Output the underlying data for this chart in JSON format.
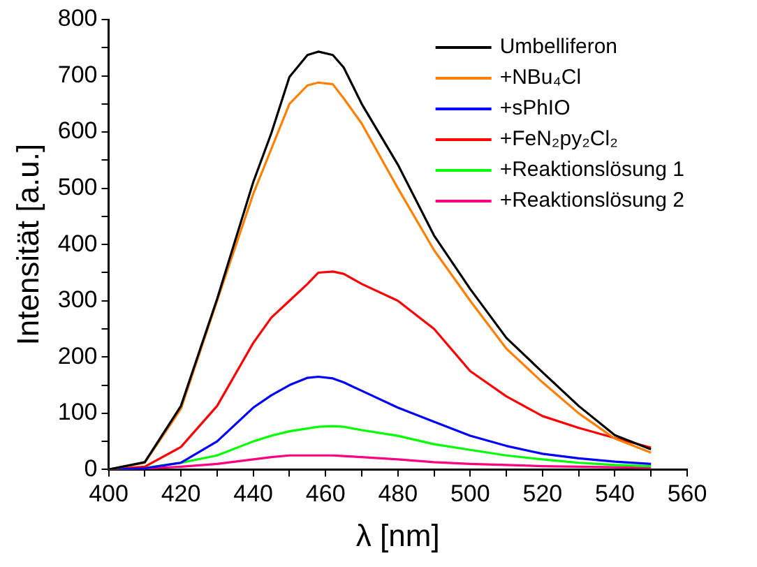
{
  "chart_data": {
    "type": "line",
    "xlabel": "λ [nm]",
    "ylabel": "Intensität [a.u.]",
    "x": [
      400,
      410,
      420,
      430,
      440,
      445,
      450,
      455,
      458,
      462,
      465,
      470,
      480,
      490,
      500,
      510,
      520,
      530,
      540,
      550
    ],
    "series": [
      {
        "name": "Umbelliferon",
        "color": "#000000",
        "values": [
          0,
          13,
          113,
          303,
          511,
          598,
          698,
          737,
          743,
          737,
          715,
          650,
          542,
          416,
          321,
          234,
          173,
          113,
          61,
          36
        ]
      },
      {
        "name": "+NBu₄Cl",
        "color": "#ff8000",
        "values": [
          0,
          12,
          108,
          300,
          490,
          570,
          650,
          683,
          688,
          685,
          660,
          615,
          500,
          390,
          300,
          215,
          155,
          100,
          55,
          30
        ]
      },
      {
        "name": "+sPhIO",
        "color": "#0000ff",
        "values": [
          0,
          2,
          12,
          50,
          110,
          132,
          150,
          163,
          165,
          162,
          155,
          140,
          110,
          85,
          60,
          42,
          28,
          20,
          14,
          10
        ]
      },
      {
        "name": "+FeN₂py₂Cl₂",
        "color": "#ff0000",
        "values": [
          0,
          5,
          40,
          113,
          225,
          270,
          300,
          330,
          350,
          352,
          348,
          330,
          300,
          250,
          175,
          130,
          95,
          74,
          56,
          39
        ]
      },
      {
        "name": "+Reaktionslösung 1",
        "color": "#00ff00",
        "values": [
          0,
          3,
          12,
          25,
          50,
          60,
          68,
          73,
          76,
          77,
          76,
          70,
          60,
          45,
          35,
          25,
          18,
          12,
          8,
          6
        ]
      },
      {
        "name": "+Reaktionslösung 2",
        "color": "#ff0080",
        "values": [
          0,
          2,
          5,
          10,
          18,
          22,
          25,
          25,
          25,
          25,
          24,
          22,
          18,
          13,
          10,
          8,
          6,
          5,
          4,
          3
        ]
      }
    ],
    "xlim": [
      400,
      560
    ],
    "xticks": [
      400,
      {
        "value": 410,
        "label": null
      },
      420,
      {
        "value": 430,
        "label": null
      },
      440,
      {
        "value": 450,
        "label": null
      },
      460,
      {
        "value": 470,
        "label": null
      },
      480,
      {
        "value": 490,
        "label": null
      },
      500,
      {
        "value": 510,
        "label": null
      },
      520,
      {
        "value": 530,
        "label": null
      },
      540,
      {
        "value": 550,
        "label": null
      },
      560
    ],
    "ylim": [
      0,
      800
    ],
    "yticks": [
      0,
      {
        "value": 50,
        "label": null
      },
      100,
      {
        "value": 150,
        "label": null
      },
      200,
      {
        "value": 250,
        "label": null
      },
      300,
      {
        "value": 350,
        "label": null
      },
      400,
      {
        "value": 450,
        "label": null
      },
      500,
      {
        "value": 550,
        "label": null
      },
      600,
      {
        "value": 650,
        "label": null
      },
      700,
      {
        "value": 750,
        "label": null
      },
      800
    ],
    "grid": false,
    "legend": "top right",
    "marker": "none",
    "line_style": "solid"
  }
}
